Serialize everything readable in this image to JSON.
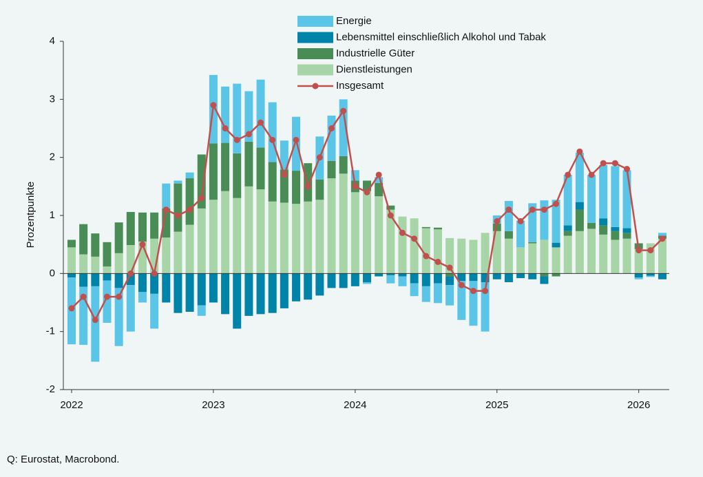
{
  "chart_data": {
    "type": "bar",
    "stacked": true,
    "y_label": "Prozentpunkte",
    "source": "Q: Eurostat, Macrobond.",
    "categories": [
      "2022",
      null,
      null,
      null,
      null,
      null,
      null,
      null,
      null,
      null,
      null,
      null,
      "2023",
      null,
      null,
      null,
      null,
      null,
      null,
      null,
      null,
      null,
      null,
      null,
      "2024",
      null,
      null,
      null,
      null,
      null,
      null,
      null,
      null,
      null,
      null,
      null,
      "2025",
      null,
      null,
      null,
      null,
      null,
      null,
      null,
      null,
      null,
      null,
      null,
      "2026",
      null,
      null
    ],
    "ylim": [
      -2,
      4
    ],
    "yticks": [
      -2,
      -1,
      0,
      1,
      2,
      3,
      4
    ],
    "series": [
      {
        "name": "Energie",
        "type": "bar",
        "color": "#5bc5e8",
        "values": [
          -1.15,
          -1.0,
          -1.3,
          -0.73,
          -1.0,
          -0.8,
          -0.18,
          -0.6,
          0.43,
          0.05,
          0.1,
          -0.18,
          1.18,
          0.97,
          1.2,
          0.87,
          1.17,
          1.03,
          0.5,
          0.93,
          0,
          0.74,
          0.78,
          0.98,
          0.18,
          -0.03,
          0.1,
          -0.14,
          -0.17,
          -0.22,
          -0.27,
          -0.34,
          -0.35,
          -0.67,
          -0.77,
          -0.85,
          0.14,
          0.52,
          0.46,
          0.67,
          0.68,
          0.74,
          0.87,
          0.85,
          0.83,
          0.92,
          1.05,
          1.0,
          -0.03,
          -0.02,
          0.05
        ]
      },
      {
        "name": "Lebensmittel einschließlich Alkohol und Tabak",
        "type": "bar",
        "color": "#0083a9",
        "values": [
          -0.07,
          -0.23,
          -0.22,
          -0.12,
          -0.25,
          -0.2,
          -0.32,
          -0.35,
          -0.5,
          -0.68,
          -0.66,
          -0.55,
          -0.5,
          -0.7,
          -0.95,
          -0.73,
          -0.7,
          -0.68,
          -0.6,
          -0.48,
          -0.45,
          -0.38,
          -0.25,
          -0.25,
          -0.22,
          -0.15,
          -0.05,
          -0.03,
          -0.05,
          -0.17,
          -0.22,
          -0.17,
          -0.15,
          -0.13,
          -0.13,
          -0.15,
          -0.1,
          -0.15,
          -0.08,
          -0.1,
          -0.13,
          0.08,
          0.1,
          0.13,
          0,
          0.12,
          0.07,
          0.08,
          -0.07,
          -0.04,
          -0.1
        ]
      },
      {
        "name": "Industrielle Güter",
        "type": "bar",
        "color": "#4a8c55",
        "values": [
          0.13,
          0.52,
          0.4,
          0.42,
          0.53,
          0.57,
          0.5,
          0.45,
          0.5,
          0.83,
          0.8,
          0.93,
          0.97,
          0.83,
          0.77,
          0.77,
          0.72,
          0.68,
          0.57,
          0.57,
          0.66,
          0.35,
          0.3,
          0.3,
          0.2,
          0.18,
          0.23,
          0.07,
          0,
          0,
          0.02,
          0.03,
          -0.05,
          0,
          0,
          0,
          0.13,
          0.13,
          0,
          0.02,
          -0.05,
          -0.05,
          0.08,
          0.37,
          0.1,
          0.16,
          0.15,
          0.1,
          0.1,
          0,
          0.05
        ]
      },
      {
        "name": "Dienstleistungen",
        "type": "bar",
        "color": "#a8d5a8",
        "values": [
          0.45,
          0.33,
          0.29,
          0.12,
          0.35,
          0.49,
          0.55,
          0.6,
          0.62,
          0.72,
          0.84,
          1.12,
          1.27,
          1.42,
          1.3,
          1.5,
          1.45,
          1.24,
          1.22,
          1.2,
          1.24,
          1.27,
          1.64,
          1.72,
          1.4,
          1.42,
          1.33,
          1.1,
          0.98,
          0.95,
          0.78,
          0.76,
          0.61,
          0.6,
          0.58,
          0.7,
          0.73,
          0.6,
          0.45,
          0.52,
          0.58,
          0.45,
          0.65,
          0.73,
          0.77,
          0.67,
          0.58,
          0.6,
          0.42,
          0.52,
          0.6
        ]
      },
      {
        "name": "Insgesamt",
        "type": "line",
        "color": "#c0504d",
        "values": [
          -0.6,
          -0.4,
          -0.8,
          -0.4,
          -0.4,
          0,
          0.5,
          0,
          1.1,
          1.0,
          1.1,
          1.3,
          2.9,
          2.5,
          2.3,
          2.4,
          2.6,
          2.3,
          1.7,
          2.3,
          1.5,
          2.0,
          2.5,
          2.8,
          1.5,
          1.4,
          1.7,
          1.0,
          0.7,
          0.6,
          0.3,
          0.2,
          0.1,
          -0.2,
          -0.3,
          -0.3,
          0.9,
          1.1,
          0.9,
          1.1,
          1.1,
          1.2,
          1.7,
          2.1,
          1.7,
          1.9,
          1.9,
          1.8,
          0.4,
          0.4,
          0.6
        ]
      }
    ]
  }
}
